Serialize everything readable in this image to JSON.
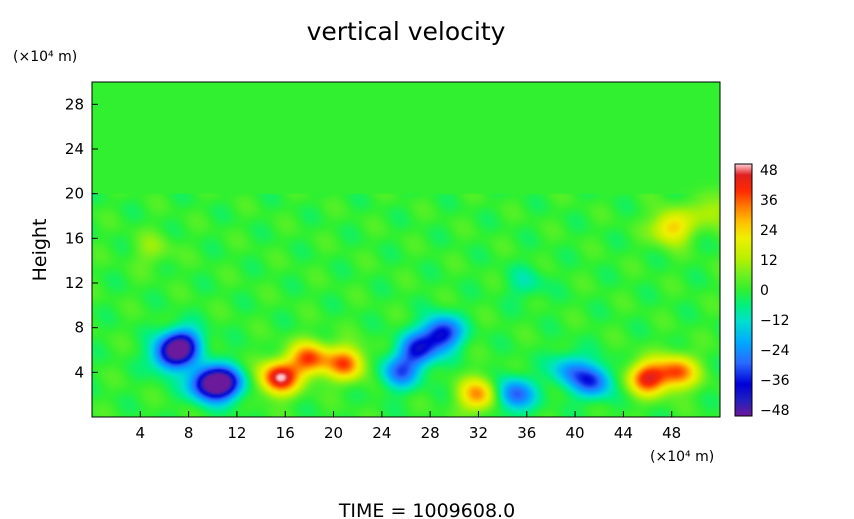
{
  "chart_data": {
    "type": "heatmap",
    "title": "vertical velocity",
    "ylabel": "Height",
    "y_unit": "(×10⁴ m)",
    "x_unit": "(×10⁴ m)",
    "footer": "TIME  =  1009608.0",
    "xlim": [
      0,
      52
    ],
    "ylim": [
      0,
      30
    ],
    "x_ticks": [
      4,
      8,
      12,
      16,
      20,
      24,
      28,
      32,
      36,
      40,
      44,
      48
    ],
    "y_ticks": [
      4,
      8,
      12,
      16,
      20,
      24,
      28
    ],
    "colorbar": {
      "min": -48,
      "max": 48,
      "tick_labels": [
        "48",
        "36",
        "24",
        "12",
        "0",
        "−12",
        "−24",
        "−36",
        "−48"
      ],
      "tick_values": [
        48,
        36,
        24,
        12,
        0,
        -12,
        -24,
        -36,
        -48
      ],
      "colors": [
        [
          -48,
          "#6a1a9a"
        ],
        [
          -42,
          "#2020c0"
        ],
        [
          -36,
          "#0000d8"
        ],
        [
          -28,
          "#2a6aff"
        ],
        [
          -20,
          "#00aaff"
        ],
        [
          -12,
          "#00e0d0"
        ],
        [
          -6,
          "#00f080"
        ],
        [
          0,
          "#30f030"
        ],
        [
          6,
          "#70f020"
        ],
        [
          12,
          "#b8f000"
        ],
        [
          20,
          "#f0f000"
        ],
        [
          26,
          "#ffc000"
        ],
        [
          32,
          "#ff7a00"
        ],
        [
          38,
          "#ff2a00"
        ],
        [
          44,
          "#e02020"
        ],
        [
          48,
          "#ffc8d0"
        ]
      ]
    },
    "field_features": [
      {
        "x": 6.5,
        "y": 5.5,
        "value": -32
      },
      {
        "x": 7.5,
        "y": 6.5,
        "value": -38
      },
      {
        "x": 11,
        "y": 3,
        "value": -40
      },
      {
        "x": 9.5,
        "y": 3.0,
        "value": -38
      },
      {
        "x": 15.5,
        "y": 3.5,
        "value": 46
      },
      {
        "x": 18,
        "y": 5.2,
        "value": 36
      },
      {
        "x": 21,
        "y": 4.8,
        "value": 34
      },
      {
        "x": 27,
        "y": 6,
        "value": -32
      },
      {
        "x": 29,
        "y": 7.5,
        "value": -38
      },
      {
        "x": 25.5,
        "y": 4,
        "value": -26
      },
      {
        "x": 32,
        "y": 2,
        "value": 30
      },
      {
        "x": 35,
        "y": 2,
        "value": -30
      },
      {
        "x": 41.5,
        "y": 3.2,
        "value": -30
      },
      {
        "x": 39.5,
        "y": 4.2,
        "value": -20
      },
      {
        "x": 46,
        "y": 3.5,
        "value": 40
      },
      {
        "x": 48.5,
        "y": 4,
        "value": 34
      },
      {
        "x": 48,
        "y": 17,
        "value": 26
      },
      {
        "x": 51.5,
        "y": 18.5,
        "value": 14
      },
      {
        "x": 5,
        "y": 15,
        "value": 8
      },
      {
        "x": 36,
        "y": 12,
        "value": -8
      }
    ]
  }
}
